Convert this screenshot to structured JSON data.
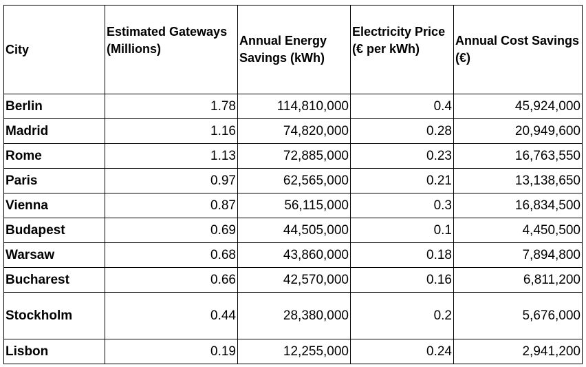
{
  "table": {
    "headers": [
      "City",
      "Estimated Gateways (Millions)",
      "Annual Energy Savings (kWh)",
      "Electricity Price (€ per kWh)",
      "Annual Cost Savings (€)"
    ],
    "rows": [
      [
        "Berlin",
        "1.78",
        "114,810,000",
        "0.4",
        "45,924,000"
      ],
      [
        "Madrid",
        "1.16",
        "74,820,000",
        "0.28",
        "20,949,600"
      ],
      [
        "Rome",
        "1.13",
        "72,885,000",
        "0.23",
        "16,763,550"
      ],
      [
        "Paris",
        "0.97",
        "62,565,000",
        "0.21",
        "13,138,650"
      ],
      [
        "Vienna",
        "0.87",
        "56,115,000",
        "0.3",
        "16,834,500"
      ],
      [
        "Budapest",
        "0.69",
        "44,505,000",
        "0.1",
        "4,450,500"
      ],
      [
        "Warsaw",
        "0.68",
        "43,860,000",
        "0.18",
        "7,894,800"
      ],
      [
        "Bucharest",
        "0.66",
        "42,570,000",
        "0.16",
        "6,811,200"
      ],
      [
        "Stockholm",
        "0.44",
        "28,380,000",
        "0.2",
        "5,676,000"
      ],
      [
        "Lisbon",
        "0.19",
        "12,255,000",
        "0.24",
        "2,941,200"
      ]
    ]
  }
}
